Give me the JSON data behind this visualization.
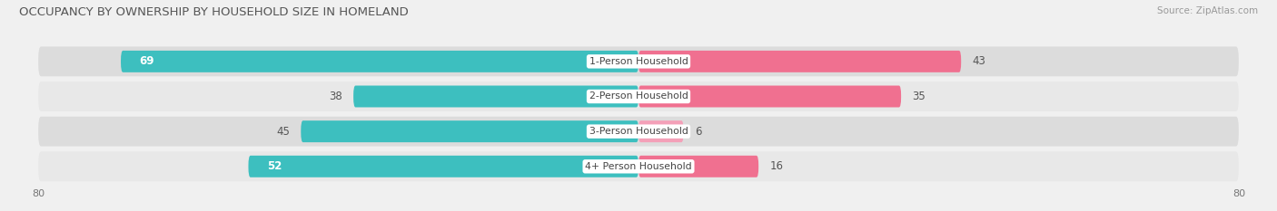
{
  "title": "OCCUPANCY BY OWNERSHIP BY HOUSEHOLD SIZE IN HOMELAND",
  "source": "Source: ZipAtlas.com",
  "categories": [
    "1-Person Household",
    "2-Person Household",
    "3-Person Household",
    "4+ Person Household"
  ],
  "owner_values": [
    69,
    38,
    45,
    52
  ],
  "renter_values": [
    43,
    35,
    6,
    16
  ],
  "owner_color": "#3DBFBF",
  "renter_color": "#F07090",
  "renter_color_light": "#F4A0B8",
  "axis_max": 80,
  "bg_color": "#f0f0f0",
  "row_bg_color_dark": "#dcdcdc",
  "row_bg_color_light": "#e8e8e8",
  "label_bg": "#ffffff"
}
